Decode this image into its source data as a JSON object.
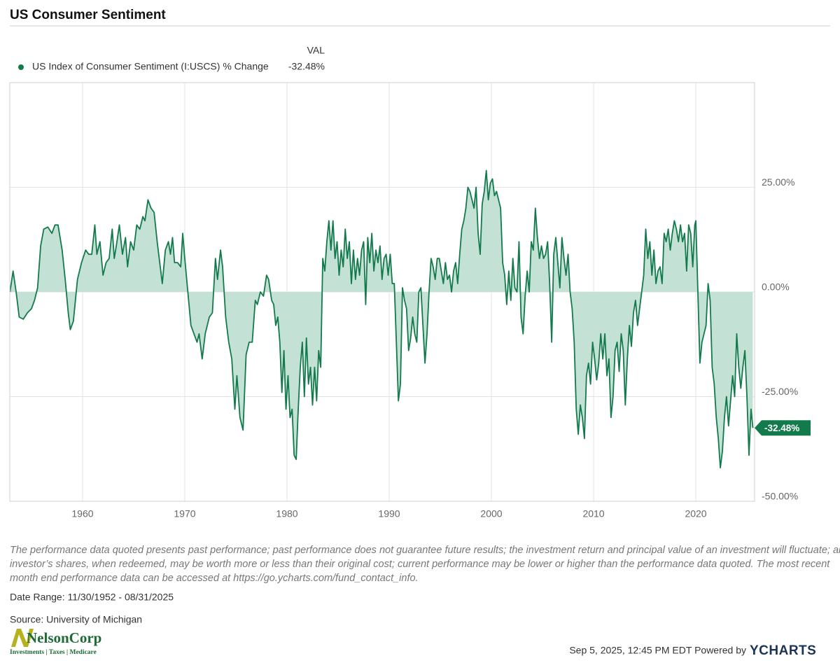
{
  "chart_data": {
    "type": "line",
    "title": "US Consumer Sentiment",
    "x": [
      1952.9,
      1953.2,
      1953.5,
      1953.8,
      1954.2,
      1954.6,
      1955.0,
      1955.3,
      1955.6,
      1955.9,
      1956.2,
      1956.6,
      1957.0,
      1957.3,
      1957.6,
      1958.0,
      1958.3,
      1958.6,
      1958.8,
      1959.1,
      1959.5,
      1959.9,
      1960.3,
      1960.6,
      1960.9,
      1961.2,
      1961.4,
      1961.7,
      1962.0,
      1962.3,
      1962.6,
      1962.9,
      1963.1,
      1963.3,
      1963.6,
      1963.9,
      1964.2,
      1964.4,
      1964.7,
      1965.0,
      1965.3,
      1965.6,
      1965.9,
      1966.1,
      1966.4,
      1966.7,
      1967.0,
      1967.3,
      1967.6,
      1967.8,
      1968.1,
      1968.4,
      1968.6,
      1968.8,
      1969.0,
      1969.3,
      1969.6,
      1969.8,
      1970.0,
      1970.3,
      1970.6,
      1970.9,
      1971.2,
      1971.4,
      1971.7,
      1972.0,
      1972.4,
      1972.7,
      1973.0,
      1973.2,
      1973.5,
      1973.7,
      1974.0,
      1974.3,
      1974.6,
      1974.9,
      1975.1,
      1975.4,
      1975.7,
      1976.0,
      1976.3,
      1976.6,
      1976.9,
      1977.1,
      1977.4,
      1977.7,
      1978.0,
      1978.2,
      1978.5,
      1978.7,
      1978.9,
      1979.1,
      1979.3,
      1979.5,
      1979.7,
      1979.9,
      1980.1,
      1980.3,
      1980.5,
      1980.7,
      1980.9,
      1981.1,
      1981.3,
      1981.5,
      1981.7,
      1981.9,
      1982.1,
      1982.3,
      1982.5,
      1982.7,
      1982.9,
      1983.1,
      1983.3,
      1983.5,
      1983.7,
      1983.9,
      1984.1,
      1984.3,
      1984.5,
      1984.7,
      1984.9,
      1985.1,
      1985.3,
      1985.5,
      1985.7,
      1985.9,
      1986.1,
      1986.3,
      1986.5,
      1986.7,
      1986.9,
      1987.1,
      1987.3,
      1987.5,
      1987.7,
      1987.9,
      1988.1,
      1988.3,
      1988.5,
      1988.7,
      1988.9,
      1989.1,
      1989.3,
      1989.5,
      1989.7,
      1989.9,
      1990.1,
      1990.3,
      1990.5,
      1990.7,
      1990.9,
      1991.1,
      1991.3,
      1991.5,
      1991.7,
      1991.9,
      1992.1,
      1992.3,
      1992.5,
      1992.7,
      1992.9,
      1993.1,
      1993.3,
      1993.5,
      1993.7,
      1993.9,
      1994.1,
      1994.3,
      1994.5,
      1994.7,
      1994.9,
      1995.1,
      1995.3,
      1995.5,
      1995.7,
      1995.9,
      1996.1,
      1996.3,
      1996.5,
      1996.7,
      1996.9,
      1997.1,
      1997.3,
      1997.5,
      1997.7,
      1997.9,
      1998.1,
      1998.3,
      1998.5,
      1998.7,
      1998.9,
      1999.1,
      1999.3,
      1999.5,
      1999.7,
      1999.9,
      2000.1,
      2000.3,
      2000.5,
      2000.7,
      2000.9,
      2001.1,
      2001.3,
      2001.5,
      2001.7,
      2001.9,
      2002.1,
      2002.3,
      2002.5,
      2002.7,
      2002.9,
      2003.1,
      2003.3,
      2003.5,
      2003.7,
      2003.9,
      2004.1,
      2004.3,
      2004.5,
      2004.7,
      2004.9,
      2005.1,
      2005.3,
      2005.5,
      2005.7,
      2005.9,
      2006.1,
      2006.3,
      2006.5,
      2006.7,
      2006.9,
      2007.1,
      2007.3,
      2007.5,
      2007.7,
      2007.9,
      2008.1,
      2008.3,
      2008.5,
      2008.7,
      2008.9,
      2009.1,
      2009.3,
      2009.5,
      2009.7,
      2009.9,
      2010.1,
      2010.3,
      2010.5,
      2010.7,
      2010.9,
      2011.1,
      2011.3,
      2011.5,
      2011.7,
      2011.9,
      2012.1,
      2012.3,
      2012.5,
      2012.7,
      2012.9,
      2013.1,
      2013.3,
      2013.5,
      2013.7,
      2013.9,
      2014.1,
      2014.3,
      2014.5,
      2014.7,
      2014.9,
      2015.1,
      2015.3,
      2015.5,
      2015.7,
      2015.9,
      2016.1,
      2016.3,
      2016.5,
      2016.7,
      2016.9,
      2017.1,
      2017.3,
      2017.5,
      2017.7,
      2017.9,
      2018.1,
      2018.3,
      2018.5,
      2018.7,
      2018.9,
      2019.1,
      2019.3,
      2019.5,
      2019.7,
      2019.9,
      2020.0,
      2020.2,
      2020.4,
      2020.6,
      2020.8,
      2021.0,
      2021.2,
      2021.4,
      2021.6,
      2021.8,
      2022.0,
      2022.2,
      2022.4,
      2022.6,
      2022.8,
      2023.0,
      2023.2,
      2023.4,
      2023.6,
      2023.8,
      2024.0,
      2024.2,
      2024.4,
      2024.6,
      2024.8,
      2025.0,
      2025.2,
      2025.4,
      2025.58
    ],
    "series": [
      {
        "name": "US Index of Consumer Sentiment (I:USCS) % Change",
        "color": "#137a4c",
        "values": [
          0,
          5,
          0,
          -6,
          -6.5,
          -5,
          -4,
          -2,
          1,
          11,
          15,
          15.5,
          14,
          16,
          16,
          10,
          3,
          -5,
          -9,
          -7,
          3,
          7,
          10,
          9,
          9,
          16,
          9,
          12,
          4,
          7,
          8,
          15,
          8,
          11,
          16,
          9,
          13,
          6,
          12,
          10,
          16,
          15,
          18,
          17,
          22,
          20,
          19,
          12,
          6,
          2,
          10,
          12,
          9,
          13,
          7,
          7,
          6,
          14,
          8,
          0,
          -8,
          -10,
          -12,
          -10,
          -16,
          -10,
          -6,
          -5,
          8,
          3,
          10,
          6,
          -6,
          -12,
          -16,
          -28,
          -20,
          -30,
          -33,
          -15,
          -12,
          -12,
          -2,
          -3,
          0,
          -1,
          4,
          3,
          -2,
          -3,
          -8,
          -6,
          -12,
          -24,
          -14,
          -28,
          -20,
          -30,
          -28,
          -39,
          -40,
          -28,
          -18,
          -12,
          -25,
          -11,
          -22,
          -18,
          -27,
          -18,
          -26,
          -14,
          -18,
          8,
          5,
          12,
          17,
          10,
          17,
          8,
          12,
          4,
          10,
          6,
          15,
          8,
          12,
          2,
          10,
          3,
          8,
          4,
          10,
          12,
          -3,
          13,
          7,
          14,
          5,
          10,
          7,
          11,
          3,
          8,
          9,
          4,
          9,
          2,
          2,
          -12,
          -26,
          -22,
          1,
          -2,
          -4,
          -14,
          -11,
          -6,
          -10,
          -12,
          0,
          1,
          -8,
          -17,
          -10,
          0,
          8,
          6,
          3,
          8,
          8,
          5,
          2,
          7,
          3,
          4,
          0,
          5,
          7,
          2,
          9,
          15,
          17,
          20,
          25,
          24,
          22,
          20,
          25,
          14,
          9,
          21,
          24,
          29,
          22,
          26,
          27,
          23,
          24,
          22,
          20,
          7,
          4,
          -3,
          5,
          -2,
          8,
          1,
          0,
          12,
          -6,
          -10,
          -1,
          5,
          0,
          12,
          10,
          20,
          13,
          8,
          11,
          8,
          9,
          12,
          2,
          -12,
          9,
          13,
          7,
          1,
          13,
          8,
          4,
          9,
          0,
          -4,
          -12,
          -28,
          -34,
          -27,
          -30,
          -35,
          -20,
          -17,
          -22,
          -12,
          -16,
          -21,
          -17,
          -10,
          -16,
          -10,
          -20,
          -16,
          -30,
          -25,
          -14,
          -12,
          -19,
          -10,
          -14,
          -27,
          -16,
          -8,
          -13,
          -5,
          -2,
          -8,
          -4,
          0,
          4,
          15,
          8,
          12,
          4,
          10,
          2,
          5,
          6,
          2,
          14,
          12,
          15,
          10,
          14,
          17,
          15,
          12,
          16,
          12,
          14,
          5,
          16,
          14,
          6,
          16,
          17,
          0,
          -17,
          -12,
          -10,
          -8,
          2,
          -2,
          -18,
          -22,
          -30,
          -35,
          -42,
          -38,
          -30,
          -25,
          -32,
          -26,
          -20,
          -25,
          -10,
          -18,
          -23,
          -18,
          -14,
          -25,
          -39,
          -28,
          -32.48
        ]
      }
    ],
    "area_fill": "#c3e1d4",
    "legend_header": "VAL",
    "current_value": {
      "value": -32.48,
      "label": "-32.48%"
    },
    "xlim": [
      1952.88,
      2025.75
    ],
    "xticks": [
      1960,
      1970,
      1980,
      1990,
      2000,
      2010,
      2020
    ],
    "ylim": [
      -50,
      50
    ],
    "yticks": [
      {
        "value": 25,
        "label": "25.00%"
      },
      {
        "value": 0,
        "label": "0.00%"
      },
      {
        "value": -25,
        "label": "-25.00%"
      },
      {
        "value": -50,
        "label": "-50.00%"
      }
    ],
    "grid": true
  },
  "notes": {
    "disclaimer": [
      "The performance data quoted presents past performance; past performance does not guarantee future results; the investment return and principal value of an investment will fluctuate; an",
      "investor’s shares, when redeemed, may be worth more or less than their original cost; current performance may be lower or higher than the performance data quoted. The most recent",
      "month end performance data can be accessed at https://go.ycharts.com/fund_contact_info."
    ],
    "date_range": "Date Range: 11/30/1952 - 08/31/2025",
    "source": "Source: University of Michigan"
  },
  "logo": {
    "name": "NelsonCorp",
    "tagline": "Investments | Taxes | Medicare"
  },
  "footer": {
    "timestamp": "Sep 5, 2025, 12:45 PM EDT Powered by",
    "brand": "YCHARTS"
  }
}
